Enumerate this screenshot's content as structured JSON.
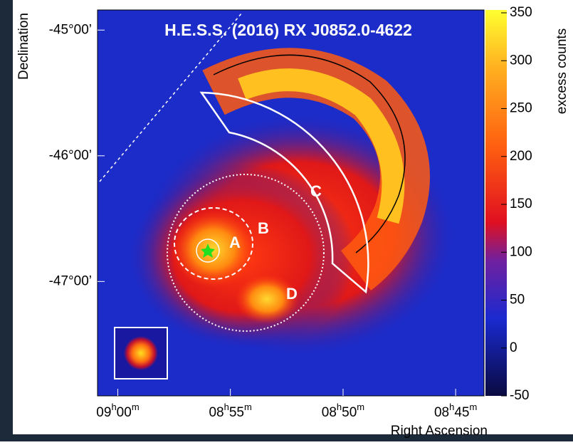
{
  "chart_data": {
    "type": "heatmap",
    "title": "H.E.S.S. (2016) RX J0852.0-4622",
    "xlabel": "Right Ascension",
    "ylabel": "Declination",
    "colorbar_label": "excess counts",
    "xlim": [
      9.015,
      8.729
    ],
    "xticks": [
      {
        "value": 9.0,
        "label": "09h00m"
      },
      {
        "value": 8.9167,
        "label": "08h55m"
      },
      {
        "value": 8.8333,
        "label": "08h50m"
      },
      {
        "value": 8.75,
        "label": "08h45m"
      }
    ],
    "ylim": [
      -47.91,
      -44.84
    ],
    "yticks": [
      {
        "value": -45,
        "label": "-45°00’"
      },
      {
        "value": -46,
        "label": "-46°00’"
      },
      {
        "value": -47,
        "label": "-47°00’"
      }
    ],
    "clim": [
      -50,
      350
    ],
    "cticks": [
      -50,
      0,
      50,
      100,
      150,
      200,
      250,
      300,
      350
    ],
    "annotations": [
      "A",
      "B",
      "C",
      "D"
    ]
  }
}
